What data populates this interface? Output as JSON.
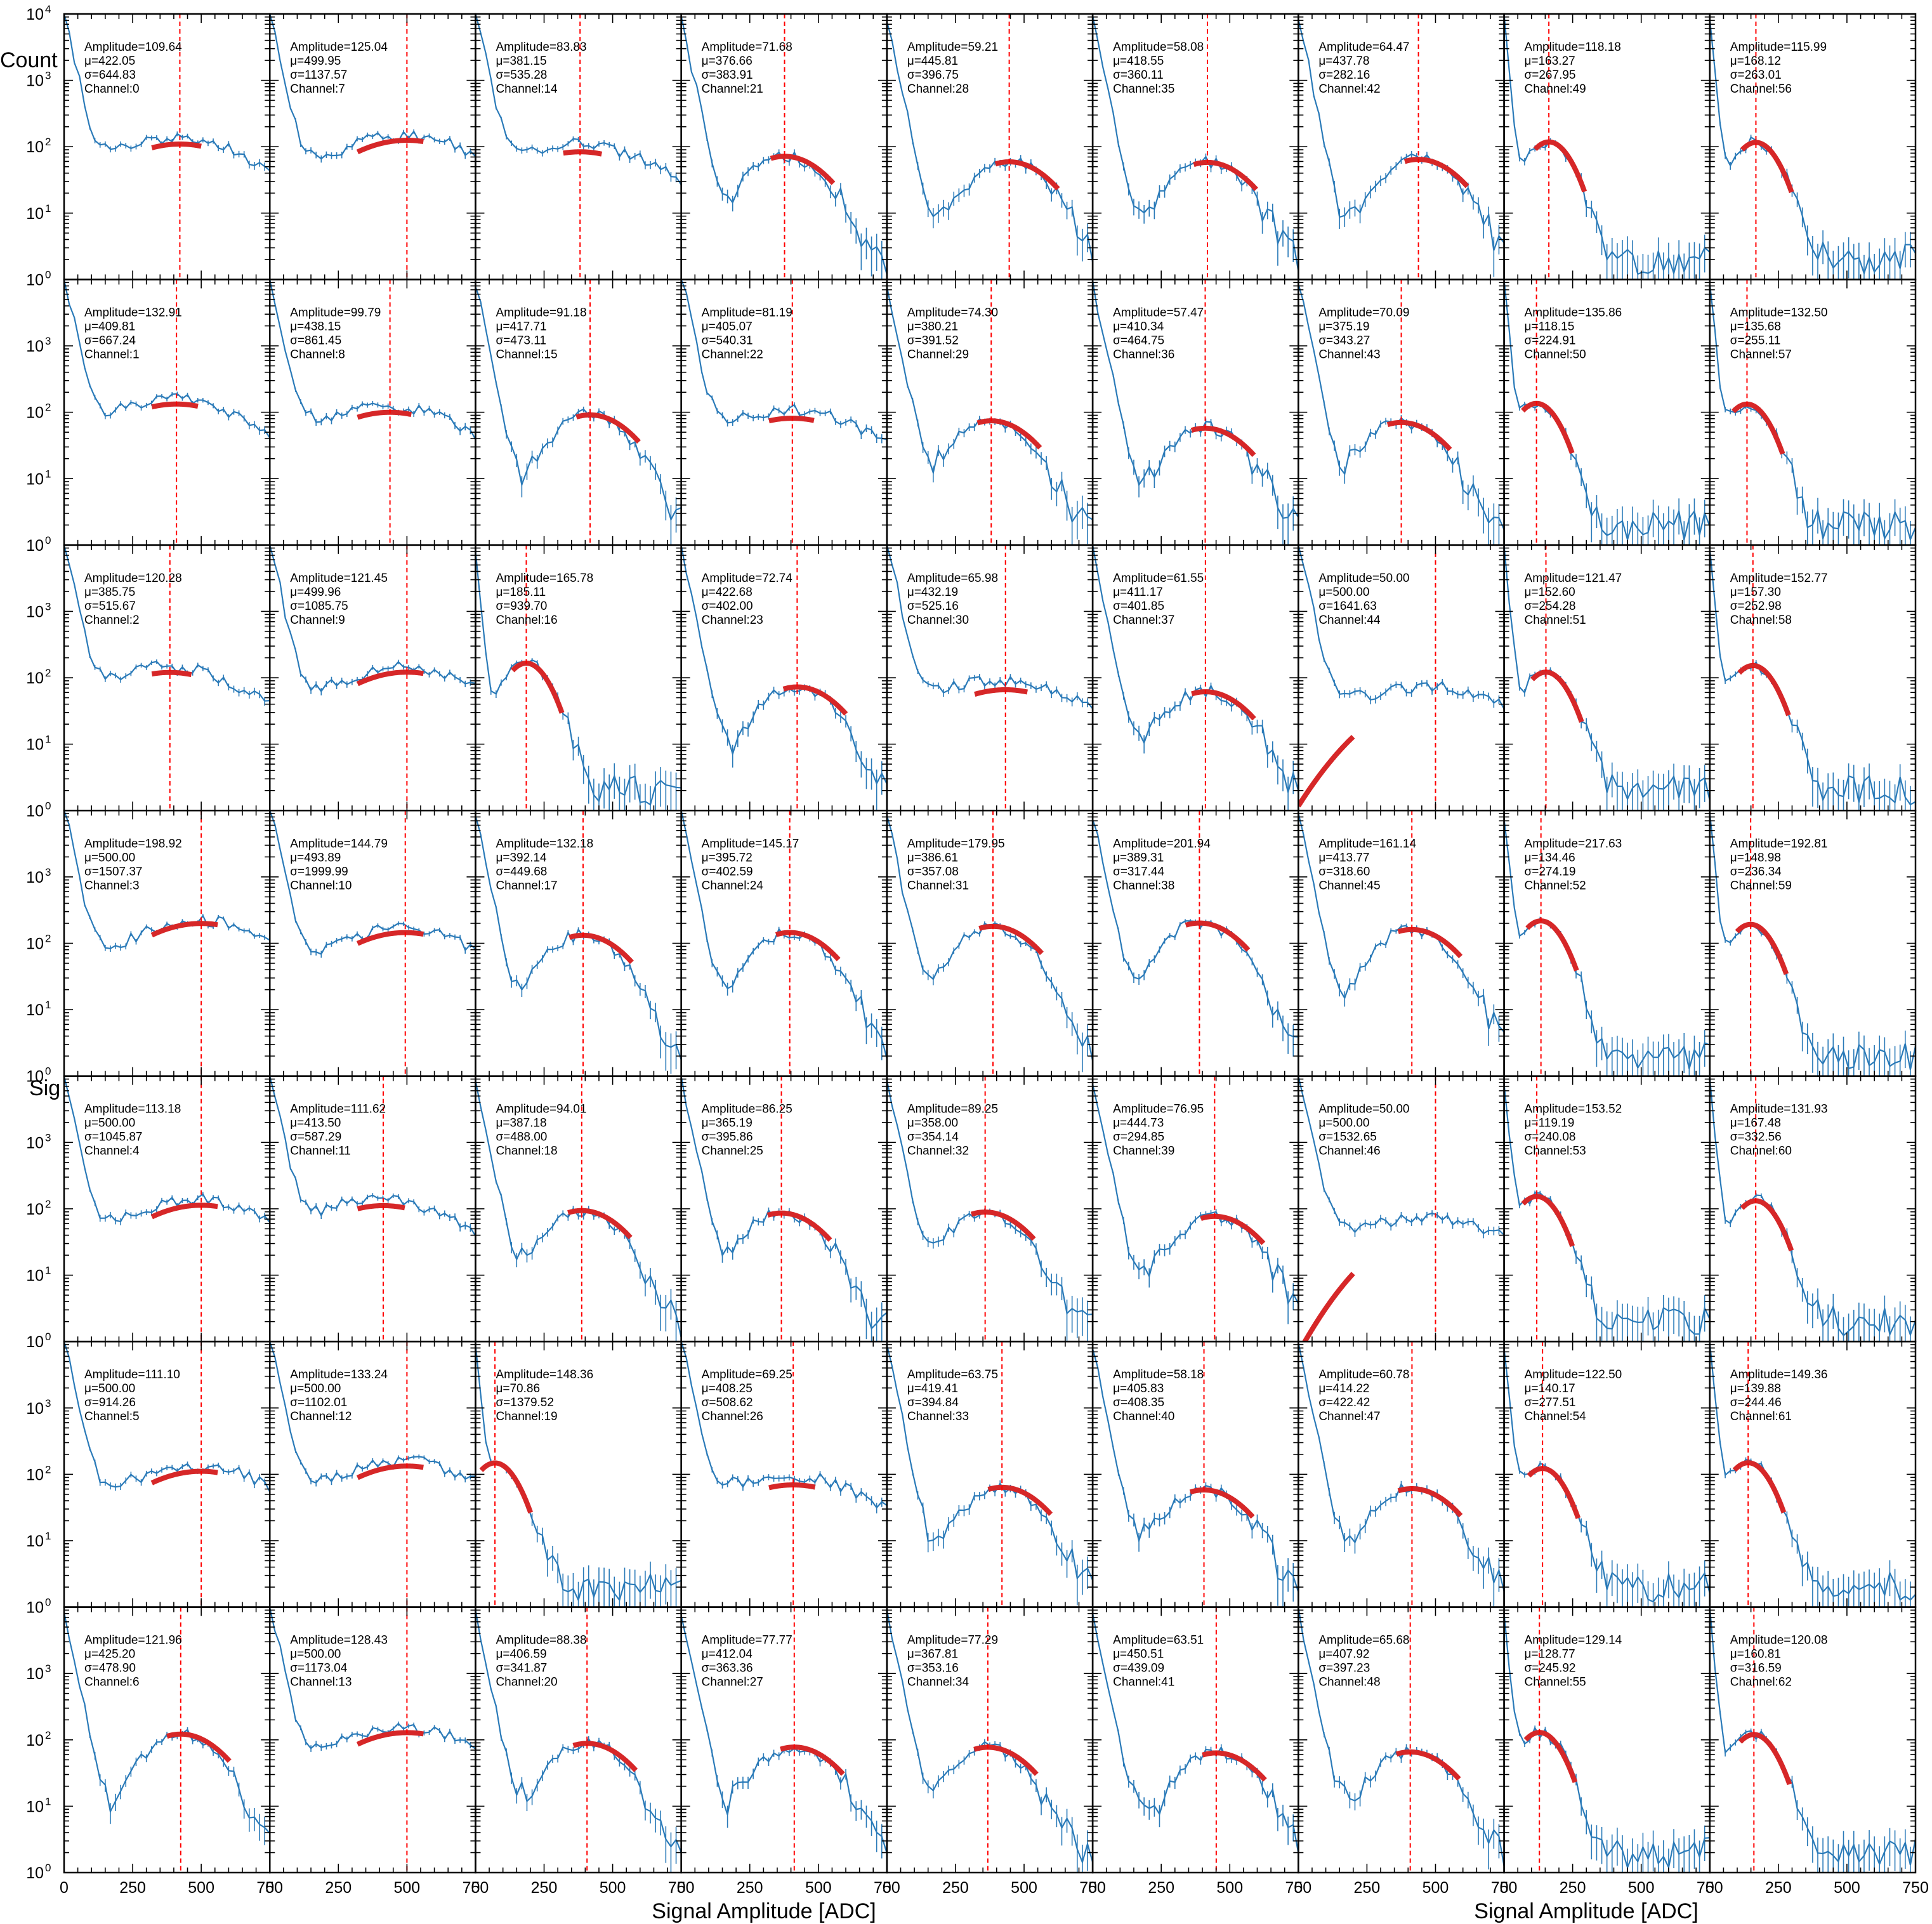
{
  "figure": {
    "ylabel": "Count",
    "xlabel": "Signal Amplitude [ADC]",
    "stray_label": "Sig"
  },
  "colors": {
    "data": "#2a7ab8",
    "fit": "#d62728",
    "mean_line": "#ff0000",
    "frame": "#000000"
  },
  "chart_data": {
    "type": "line",
    "layout": {
      "rows": 7,
      "cols": 9
    },
    "xlim": [
      0,
      750
    ],
    "ylim": [
      1,
      10000
    ],
    "yscale": "log",
    "x_ticks": [
      "0",
      "250",
      "500",
      "750"
    ],
    "y_ticks": [
      "10",
      "10",
      "10",
      "10",
      "10"
    ],
    "y_tick_exponents": [
      "0",
      "1",
      "2",
      "3",
      "4"
    ],
    "grid": false,
    "panels": [
      {
        "channel": 0,
        "amp": "109.64",
        "mu": "422.05",
        "sigma": "644.83"
      },
      {
        "channel": 7,
        "amp": "125.04",
        "mu": "499.95",
        "sigma": "1137.57"
      },
      {
        "channel": 14,
        "amp": "83.83",
        "mu": "381.15",
        "sigma": "535.28"
      },
      {
        "channel": 21,
        "amp": "71.68",
        "mu": "376.66",
        "sigma": "383.91"
      },
      {
        "channel": 28,
        "amp": "59.21",
        "mu": "445.81",
        "sigma": "396.75"
      },
      {
        "channel": 35,
        "amp": "58.08",
        "mu": "418.55",
        "sigma": "360.11"
      },
      {
        "channel": 42,
        "amp": "64.47",
        "mu": "437.78",
        "sigma": "282.16"
      },
      {
        "channel": 49,
        "amp": "118.18",
        "mu": "163.27",
        "sigma": "267.95"
      },
      {
        "channel": 56,
        "amp": "115.99",
        "mu": "168.12",
        "sigma": "263.01"
      },
      {
        "channel": 1,
        "amp": "132.91",
        "mu": "409.81",
        "sigma": "667.24"
      },
      {
        "channel": 8,
        "amp": "99.79",
        "mu": "438.15",
        "sigma": "861.45"
      },
      {
        "channel": 15,
        "amp": "91.18",
        "mu": "417.71",
        "sigma": "473.11"
      },
      {
        "channel": 22,
        "amp": "81.19",
        "mu": "405.07",
        "sigma": "540.31"
      },
      {
        "channel": 29,
        "amp": "74.30",
        "mu": "380.21",
        "sigma": "391.52"
      },
      {
        "channel": 36,
        "amp": "57.47",
        "mu": "410.34",
        "sigma": "464.75"
      },
      {
        "channel": 43,
        "amp": "70.09",
        "mu": "375.19",
        "sigma": "343.27"
      },
      {
        "channel": 50,
        "amp": "135.86",
        "mu": "118.15",
        "sigma": "224.91"
      },
      {
        "channel": 57,
        "amp": "132.50",
        "mu": "135.68",
        "sigma": "255.11"
      },
      {
        "channel": 2,
        "amp": "120.28",
        "mu": "385.75",
        "sigma": "515.67"
      },
      {
        "channel": 9,
        "amp": "121.45",
        "mu": "499.96",
        "sigma": "1085.75"
      },
      {
        "channel": 16,
        "amp": "165.78",
        "mu": "185.11",
        "sigma": "939.70"
      },
      {
        "channel": 23,
        "amp": "72.74",
        "mu": "422.68",
        "sigma": "402.00"
      },
      {
        "channel": 30,
        "amp": "65.98",
        "mu": "432.19",
        "sigma": "525.16"
      },
      {
        "channel": 37,
        "amp": "61.55",
        "mu": "411.17",
        "sigma": "401.85"
      },
      {
        "channel": 44,
        "amp": "50.00",
        "mu": "500.00",
        "sigma": "1641.63"
      },
      {
        "channel": 51,
        "amp": "121.47",
        "mu": "152.60",
        "sigma": "254.28"
      },
      {
        "channel": 58,
        "amp": "152.77",
        "mu": "157.30",
        "sigma": "252.98"
      },
      {
        "channel": 3,
        "amp": "198.92",
        "mu": "500.00",
        "sigma": "1507.37"
      },
      {
        "channel": 10,
        "amp": "144.79",
        "mu": "493.89",
        "sigma": "1999.99"
      },
      {
        "channel": 17,
        "amp": "132.18",
        "mu": "392.14",
        "sigma": "449.68"
      },
      {
        "channel": 24,
        "amp": "145.17",
        "mu": "395.72",
        "sigma": "402.59"
      },
      {
        "channel": 31,
        "amp": "179.95",
        "mu": "386.61",
        "sigma": "357.08"
      },
      {
        "channel": 38,
        "amp": "201.94",
        "mu": "389.31",
        "sigma": "317.44"
      },
      {
        "channel": 45,
        "amp": "161.14",
        "mu": "413.77",
        "sigma": "318.60"
      },
      {
        "channel": 52,
        "amp": "217.63",
        "mu": "134.46",
        "sigma": "274.19"
      },
      {
        "channel": 59,
        "amp": "192.81",
        "mu": "148.98",
        "sigma": "236.34"
      },
      {
        "channel": 4,
        "amp": "113.18",
        "mu": "500.00",
        "sigma": "1045.87"
      },
      {
        "channel": 11,
        "amp": "111.62",
        "mu": "413.50",
        "sigma": "587.29"
      },
      {
        "channel": 18,
        "amp": "94.01",
        "mu": "387.18",
        "sigma": "488.00"
      },
      {
        "channel": 25,
        "amp": "86.25",
        "mu": "365.19",
        "sigma": "395.86"
      },
      {
        "channel": 32,
        "amp": "89.25",
        "mu": "358.00",
        "sigma": "354.14"
      },
      {
        "channel": 39,
        "amp": "76.95",
        "mu": "444.73",
        "sigma": "294.85"
      },
      {
        "channel": 46,
        "amp": "50.00",
        "mu": "500.00",
        "sigma": "1532.65"
      },
      {
        "channel": 53,
        "amp": "153.52",
        "mu": "119.19",
        "sigma": "240.08"
      },
      {
        "channel": 60,
        "amp": "131.93",
        "mu": "167.48",
        "sigma": "332.56"
      },
      {
        "channel": 5,
        "amp": "111.10",
        "mu": "500.00",
        "sigma": "914.26"
      },
      {
        "channel": 12,
        "amp": "133.24",
        "mu": "500.00",
        "sigma": "1102.01"
      },
      {
        "channel": 19,
        "amp": "148.36",
        "mu": "70.86",
        "sigma": "1379.52"
      },
      {
        "channel": 26,
        "amp": "69.25",
        "mu": "408.25",
        "sigma": "508.62"
      },
      {
        "channel": 33,
        "amp": "63.75",
        "mu": "419.41",
        "sigma": "394.84"
      },
      {
        "channel": 40,
        "amp": "58.18",
        "mu": "405.83",
        "sigma": "408.35"
      },
      {
        "channel": 47,
        "amp": "60.78",
        "mu": "414.22",
        "sigma": "422.42"
      },
      {
        "channel": 54,
        "amp": "122.50",
        "mu": "140.17",
        "sigma": "277.51"
      },
      {
        "channel": 61,
        "amp": "149.36",
        "mu": "139.88",
        "sigma": "244.46"
      },
      {
        "channel": 6,
        "amp": "121.96",
        "mu": "425.20",
        "sigma": "478.90"
      },
      {
        "channel": 13,
        "amp": "128.43",
        "mu": "500.00",
        "sigma": "1173.04"
      },
      {
        "channel": 20,
        "amp": "88.38",
        "mu": "406.59",
        "sigma": "341.87"
      },
      {
        "channel": 27,
        "amp": "77.77",
        "mu": "412.04",
        "sigma": "363.36"
      },
      {
        "channel": 34,
        "amp": "77.29",
        "mu": "367.81",
        "sigma": "353.16"
      },
      {
        "channel": 41,
        "amp": "63.51",
        "mu": "450.51",
        "sigma": "439.09"
      },
      {
        "channel": 48,
        "amp": "65.68",
        "mu": "407.92",
        "sigma": "397.23"
      },
      {
        "channel": 55,
        "amp": "129.14",
        "mu": "128.77",
        "sigma": "245.92"
      },
      {
        "channel": 62,
        "amp": "120.08",
        "mu": "160.81",
        "sigma": "316.59"
      }
    ]
  }
}
